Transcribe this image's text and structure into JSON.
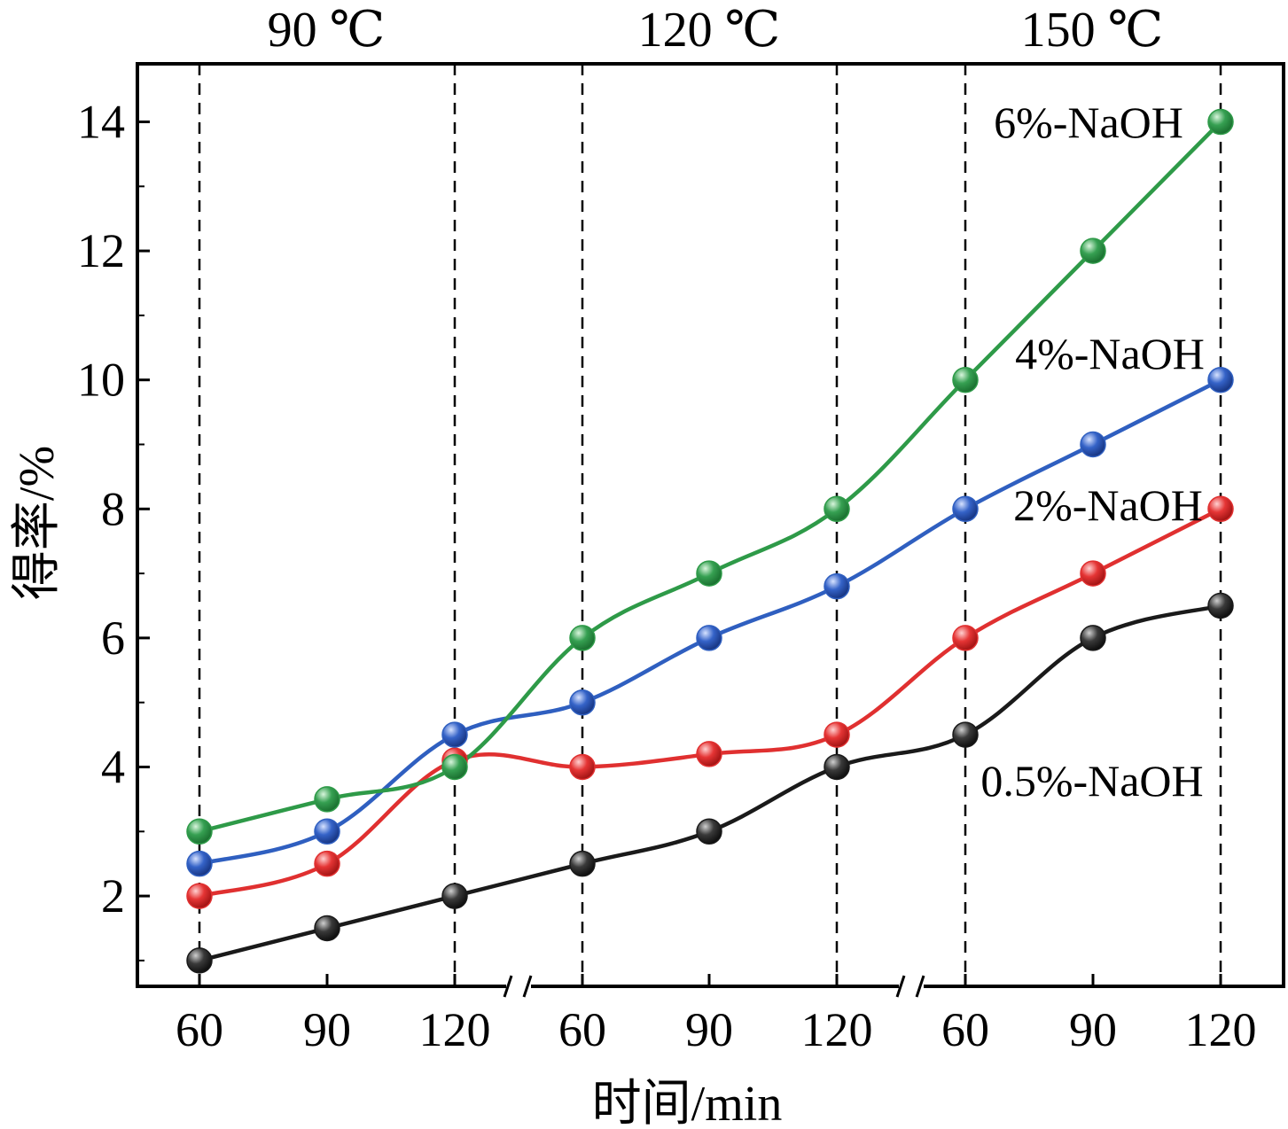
{
  "chart_data": {
    "type": "line",
    "xlabel": "时间/min",
    "ylabel": "得率/%",
    "ylim": [
      0.6,
      14.9
    ],
    "yticks": [
      2,
      4,
      6,
      8,
      10,
      12,
      14
    ],
    "grid": false,
    "groups": [
      {
        "label": "90 ℃",
        "ticks": [
          "60",
          "90",
          "120"
        ]
      },
      {
        "label": "120 ℃",
        "ticks": [
          "60",
          "90",
          "120"
        ]
      },
      {
        "label": "150 ℃",
        "ticks": [
          "60",
          "90",
          "120"
        ]
      }
    ],
    "categories": [
      "90 ℃ / 60",
      "90 ℃ / 90",
      "90 ℃ / 120",
      "120 ℃ / 60",
      "120 ℃ / 90",
      "120 ℃ / 120",
      "150 ℃ / 60",
      "150 ℃ / 90",
      "150 ℃ / 120"
    ],
    "series": [
      {
        "name": "0.5%-NaOH",
        "color": "#1a1a1a",
        "values": [
          1.0,
          1.5,
          2.0,
          2.5,
          3.0,
          4.0,
          4.5,
          6.0,
          6.5
        ]
      },
      {
        "name": "2%-NaOH",
        "color": "#e03030",
        "values": [
          2.0,
          2.5,
          4.1,
          4.0,
          4.2,
          4.5,
          6.0,
          7.0,
          8.0
        ]
      },
      {
        "name": "4%-NaOH",
        "color": "#2f5fc0",
        "values": [
          2.5,
          3.0,
          4.5,
          5.0,
          6.0,
          6.8,
          8.0,
          9.0,
          10.0
        ]
      },
      {
        "name": "6%-NaOH",
        "color": "#2e9a48",
        "values": [
          3.0,
          3.5,
          4.0,
          6.0,
          7.0,
          8.0,
          10.0,
          12.0,
          14.0
        ]
      }
    ]
  }
}
